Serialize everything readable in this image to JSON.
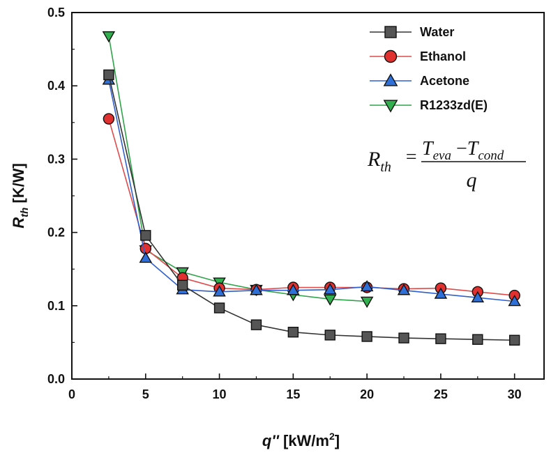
{
  "chart_data": {
    "type": "line",
    "title": "",
    "xlabel": "q'' [kW/m2]",
    "xlabel_parts": {
      "main": "q''",
      "unit_prefix": " [kW/m",
      "unit_sup": "2",
      "unit_suffix": "]"
    },
    "ylabel": "Rth [K/W]",
    "ylabel_parts": {
      "main": "R",
      "sub": "th",
      "unit": " [K/W]"
    },
    "xlim": [
      0,
      32
    ],
    "ylim": [
      0,
      0.5
    ],
    "xticks": [
      0,
      5,
      10,
      15,
      20,
      25,
      30
    ],
    "xtick_labels": [
      "0",
      "5",
      "10",
      "15",
      "20",
      "25",
      "30"
    ],
    "yticks": [
      0,
      0.1,
      0.2,
      0.3,
      0.4,
      0.5
    ],
    "ytick_labels": [
      "0.0",
      "0.1",
      "0.2",
      "0.3",
      "0.4",
      "0.5"
    ],
    "grid": false,
    "legend_position": "top-right",
    "annotation": {
      "lhs": "R",
      "lhs_sub": "th",
      "equals": "=",
      "numerator_a": "T",
      "numerator_a_sub": "eva",
      "minus": "−",
      "numerator_b": "T",
      "numerator_b_sub": "cond",
      "denominator": "q"
    },
    "series": [
      {
        "name": "Water",
        "marker": "square",
        "line_color": "#333333",
        "marker_fill": "#555555",
        "x": [
          2.5,
          5,
          7.5,
          10,
          12.5,
          15,
          17.5,
          20,
          22.5,
          25,
          27.5,
          30
        ],
        "values": [
          0.415,
          0.196,
          0.128,
          0.097,
          0.074,
          0.064,
          0.06,
          0.058,
          0.056,
          0.055,
          0.054,
          0.053
        ]
      },
      {
        "name": "Ethanol",
        "marker": "circle",
        "line_color": "#e04a4a",
        "marker_fill": "#e03030",
        "x": [
          2.5,
          5,
          7.5,
          10,
          12.5,
          15,
          17.5,
          20,
          22.5,
          25,
          27.5,
          30
        ],
        "values": [
          0.355,
          0.178,
          0.138,
          0.124,
          0.122,
          0.125,
          0.125,
          0.125,
          0.123,
          0.124,
          0.119,
          0.114
        ]
      },
      {
        "name": "Acetone",
        "marker": "triangle-up",
        "line_color": "#2f5fcf",
        "marker_fill": "#2f6fd8",
        "x": [
          2.5,
          5,
          7.5,
          10,
          12.5,
          15,
          17.5,
          20,
          22.5,
          25,
          27.5,
          30
        ],
        "values": [
          0.408,
          0.165,
          0.122,
          0.119,
          0.121,
          0.121,
          0.122,
          0.126,
          0.121,
          0.116,
          0.111,
          0.106
        ]
      },
      {
        "name": "R1233zd(E)",
        "marker": "triangle-down",
        "line_color": "#2fa34a",
        "marker_fill": "#32b050",
        "x": [
          2.5,
          5,
          7.5,
          10,
          12.5,
          15,
          17.5,
          20
        ],
        "values": [
          0.468,
          0.176,
          0.146,
          0.132,
          0.122,
          0.115,
          0.109,
          0.106
        ]
      }
    ]
  }
}
